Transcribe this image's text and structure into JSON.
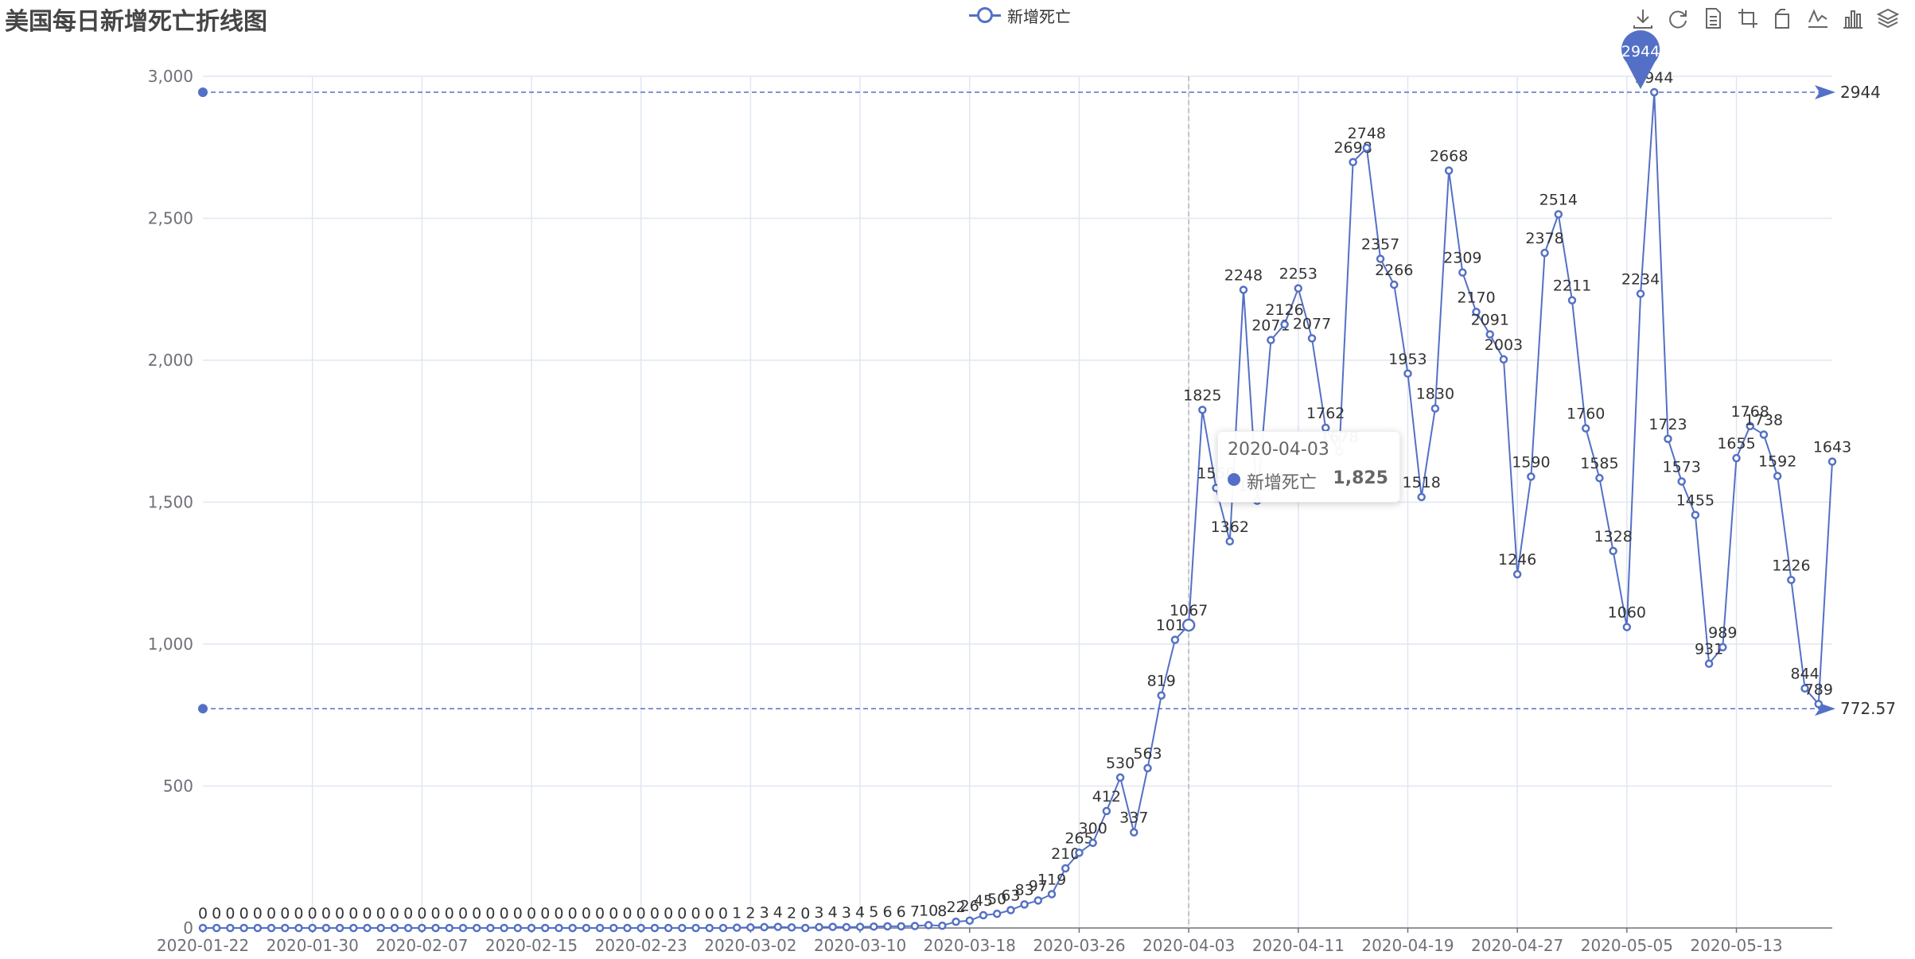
{
  "title": "美国每日新增死亡折线图",
  "legend": {
    "label": "新增死亡",
    "color": "#5470c6"
  },
  "toolbox": [
    "download-icon",
    "refresh-icon",
    "data-view-icon",
    "zoom-icon",
    "zoom-reset-icon",
    "line-chart-icon",
    "bar-chart-icon",
    "stack-icon"
  ],
  "tooltip": {
    "date": "2020-04-03",
    "series": "新增死亡",
    "value": "1,825"
  },
  "chart_data": {
    "type": "line",
    "title": "美国每日新增死亡折线图",
    "start_date": "2020-01-22",
    "x_tick_labels": [
      "2020-01-22",
      "2020-01-30",
      "2020-02-07",
      "2020-02-15",
      "2020-02-23",
      "2020-03-02",
      "2020-03-10",
      "2020-03-18",
      "2020-03-26",
      "2020-04-03",
      "2020-04-11",
      "2020-04-19",
      "2020-04-27",
      "2020-05-05",
      "2020-05-13"
    ],
    "y_tick_labels": [
      "0",
      "500",
      "1,000",
      "1,500",
      "2,000",
      "2,500",
      "3,000"
    ],
    "ylim": [
      0,
      3000
    ],
    "grid": true,
    "legend_position": "top-center",
    "color": "#5470c6",
    "series": [
      {
        "name": "新增死亡",
        "values": [
          0,
          0,
          0,
          0,
          0,
          0,
          0,
          0,
          0,
          0,
          0,
          0,
          0,
          0,
          0,
          0,
          0,
          0,
          0,
          0,
          0,
          0,
          0,
          0,
          0,
          0,
          0,
          0,
          0,
          0,
          0,
          0,
          0,
          0,
          0,
          0,
          0,
          0,
          0,
          1,
          2,
          3,
          4,
          2,
          0,
          3,
          4,
          3,
          4,
          5,
          6,
          6,
          7,
          10,
          8,
          22,
          26,
          45,
          50,
          63,
          83,
          97,
          119,
          210,
          265,
          300,
          412,
          530,
          337,
          563,
          819,
          1015,
          1067,
          1825,
          1550,
          1362,
          2248,
          1505,
          2071,
          2126,
          2253,
          2077,
          1762,
          1678,
          2698,
          2748,
          2357,
          2266,
          1953,
          1518,
          1830,
          2668,
          2309,
          2170,
          2091,
          2003,
          1246,
          1590,
          2378,
          2514,
          2211,
          1760,
          1585,
          1328,
          1060,
          2234,
          2944,
          1723,
          1573,
          1455,
          931,
          989,
          1655,
          1768,
          1738,
          1592,
          1226,
          844,
          789,
          1643
        ]
      }
    ],
    "mark_points": [
      {
        "type": "max",
        "label": "2944",
        "date": "2020-05-06",
        "value": 2944
      }
    ],
    "mark_lines": [
      {
        "label": "2944",
        "value": 2944
      },
      {
        "label": "772.57",
        "value": 772.57
      }
    ],
    "highlight": {
      "date": "2020-04-03",
      "value": 1825
    }
  }
}
